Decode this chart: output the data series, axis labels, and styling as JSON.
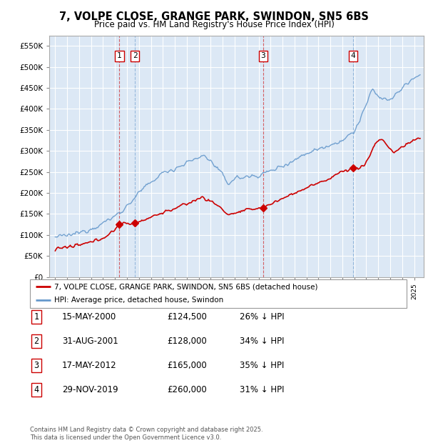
{
  "title": "7, VOLPE CLOSE, GRANGE PARK, SWINDON, SN5 6BS",
  "subtitle": "Price paid vs. HM Land Registry's House Price Index (HPI)",
  "ylim": [
    0,
    575000
  ],
  "yticks": [
    0,
    50000,
    100000,
    150000,
    200000,
    250000,
    300000,
    350000,
    400000,
    450000,
    500000,
    550000
  ],
  "ytick_labels": [
    "£0",
    "£50K",
    "£100K",
    "£150K",
    "£200K",
    "£250K",
    "£300K",
    "£350K",
    "£400K",
    "£450K",
    "£500K",
    "£550K"
  ],
  "background_color": "#ffffff",
  "plot_bg_color": "#dce8f5",
  "grid_color": "#ffffff",
  "hpi_color": "#6699cc",
  "price_color": "#cc0000",
  "transactions": [
    {
      "label": "1",
      "date": "15-MAY-2000",
      "price": 124500,
      "pct": "26%",
      "x": 2000.37,
      "vline_color": "#cc0000"
    },
    {
      "label": "2",
      "date": "31-AUG-2001",
      "price": 128000,
      "pct": "34%",
      "x": 2001.66,
      "vline_color": "#6699cc"
    },
    {
      "label": "3",
      "date": "17-MAY-2012",
      "price": 165000,
      "pct": "35%",
      "x": 2012.37,
      "vline_color": "#cc0000"
    },
    {
      "label": "4",
      "date": "29-NOV-2019",
      "price": 260000,
      "pct": "31%",
      "x": 2019.91,
      "vline_color": "#6699cc"
    }
  ],
  "legend_entries": [
    "7, VOLPE CLOSE, GRANGE PARK, SWINDON, SN5 6BS (detached house)",
    "HPI: Average price, detached house, Swindon"
  ],
  "footnote": "Contains HM Land Registry data © Crown copyright and database right 2025.\nThis data is licensed under the Open Government Licence v3.0.",
  "table_rows": [
    [
      "1",
      "15-MAY-2000",
      "£124,500",
      "26% ↓ HPI"
    ],
    [
      "2",
      "31-AUG-2001",
      "£128,000",
      "34% ↓ HPI"
    ],
    [
      "3",
      "17-MAY-2012",
      "£165,000",
      "35% ↓ HPI"
    ],
    [
      "4",
      "29-NOV-2019",
      "£260,000",
      "31% ↓ HPI"
    ]
  ]
}
